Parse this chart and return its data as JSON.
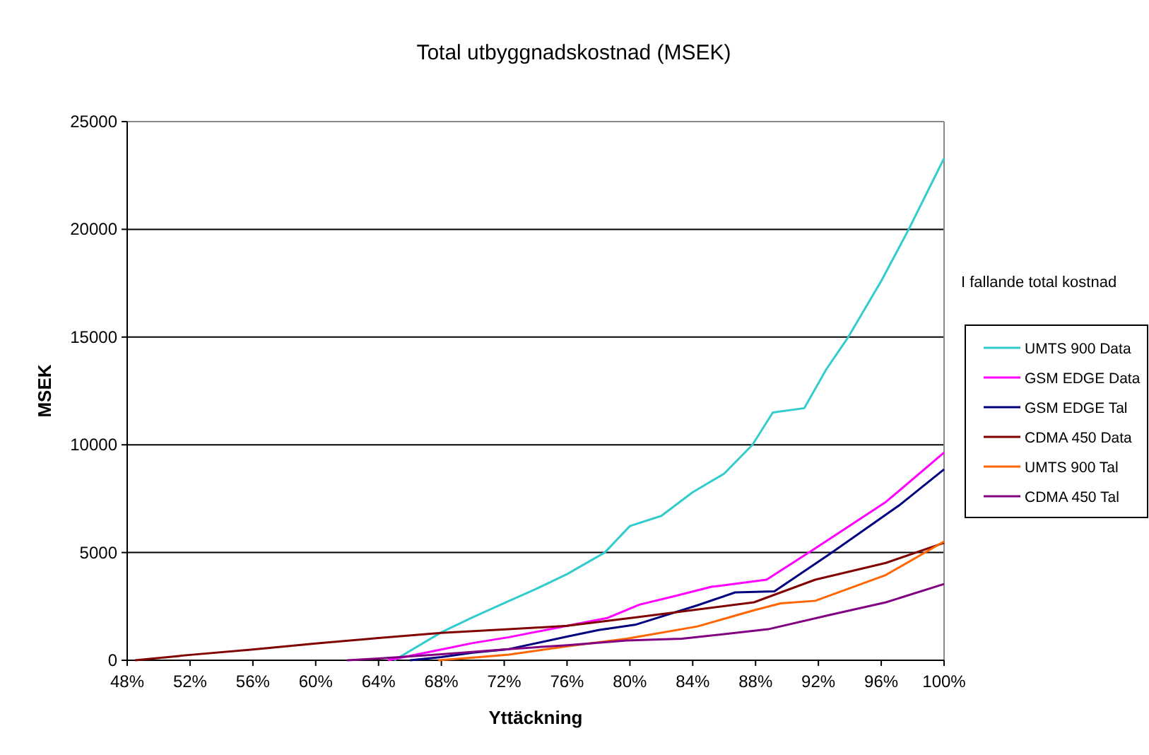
{
  "chart_data": {
    "type": "line",
    "title": "Total utbyggnadskostnad (MSEK)",
    "xlabel": "Yttäckning",
    "ylabel": "MSEK",
    "legend_title": "I fallande total kostnad",
    "legend": "right",
    "grid": "y",
    "marker": "none",
    "line_style": "solid",
    "xlim": [
      48,
      100
    ],
    "ylim": [
      0,
      25000
    ],
    "xticks": [
      {
        "value": 48,
        "label": "48%"
      },
      {
        "value": 52,
        "label": "52%"
      },
      {
        "value": 56,
        "label": "56%"
      },
      {
        "value": 60,
        "label": "60%"
      },
      {
        "value": 64,
        "label": "64%"
      },
      {
        "value": 68,
        "label": "68%"
      },
      {
        "value": 72,
        "label": "72%"
      },
      {
        "value": 76,
        "label": "76%"
      },
      {
        "value": 80,
        "label": "80%"
      },
      {
        "value": 84,
        "label": "84%"
      },
      {
        "value": 88,
        "label": "88%"
      },
      {
        "value": 92,
        "label": "92%"
      },
      {
        "value": 96,
        "label": "96%"
      },
      {
        "value": 100,
        "label": "100%"
      }
    ],
    "yticks": [
      0,
      5000,
      10000,
      15000,
      20000,
      25000
    ],
    "series": [
      {
        "name": "UMTS 900 Data",
        "color": "#33cccc",
        "x": [
          65,
          68,
          70,
          72.3,
          74,
          76,
          78.4,
          80,
          82,
          84,
          86,
          87.8,
          89.1,
          91.1,
          92.5,
          93.9,
          96,
          97.75,
          100
        ],
        "values": [
          0,
          1300,
          2000,
          2750,
          3300,
          4000,
          5000,
          6230,
          6700,
          7800,
          8660,
          10000,
          11500,
          11700,
          13500,
          15000,
          17600,
          20000,
          23300
        ]
      },
      {
        "name": "GSM EDGE Data",
        "color": "#ff00ff",
        "x": [
          64.6,
          68,
          70,
          72.3,
          76,
          78.6,
          80.6,
          82.8,
          85.2,
          88.7,
          91.5,
          96.3,
          100
        ],
        "values": [
          0,
          500,
          800,
          1070,
          1600,
          1970,
          2580,
          2970,
          3410,
          3740,
          5050,
          7350,
          9640
        ]
      },
      {
        "name": "GSM EDGE Tal",
        "color": "#000080",
        "x": [
          66,
          68,
          70,
          72.3,
          76,
          78,
          80.4,
          84.3,
          86.7,
          89.2,
          92.7,
          97.2,
          100
        ],
        "values": [
          0,
          150,
          350,
          520,
          1100,
          1400,
          1660,
          2550,
          3150,
          3200,
          4920,
          7220,
          8860
        ]
      },
      {
        "name": "CDMA 450 Data",
        "color": "#800000",
        "x": [
          48.5,
          52,
          56,
          60,
          64,
          68,
          72.3,
          76,
          80.4,
          87.9,
          91.8,
          96.3,
          100
        ],
        "values": [
          0,
          250,
          500,
          780,
          1030,
          1270,
          1440,
          1600,
          1990,
          2690,
          3740,
          4520,
          5450
        ]
      },
      {
        "name": "UMTS 900 Tal",
        "color": "#ff6600",
        "x": [
          67.8,
          70,
          72.3,
          76,
          79.8,
          84.3,
          87.9,
          89.6,
          91.8,
          96.3,
          100
        ],
        "values": [
          0,
          120,
          260,
          650,
          1000,
          1570,
          2320,
          2640,
          2760,
          3960,
          5510
        ]
      },
      {
        "name": "CDMA 450 Tal",
        "color": "#800080",
        "x": [
          62,
          64,
          68,
          72.3,
          76,
          79.8,
          83.3,
          88.8,
          92.7,
          96.3,
          100
        ],
        "values": [
          0,
          80,
          280,
          520,
          700,
          920,
          1000,
          1440,
          2100,
          2690,
          3540
        ]
      }
    ]
  }
}
